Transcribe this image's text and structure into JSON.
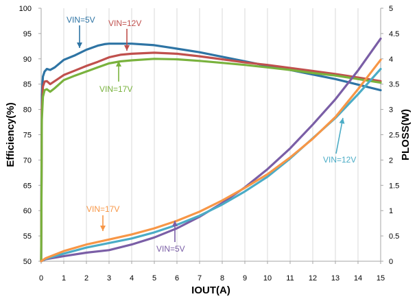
{
  "chart_data": {
    "type": "line",
    "title": "",
    "xlabel": "IOUT(A)",
    "ylabel_left": "Efficiency(%)",
    "ylabel_right": "PLOSS(W)",
    "xlim": [
      0,
      15
    ],
    "ylim_left": [
      50,
      100
    ],
    "ylim_right": [
      0,
      5
    ],
    "x_ticks": [
      "0",
      "1",
      "2",
      "3",
      "4",
      "5",
      "6",
      "7",
      "8",
      "9",
      "10",
      "11",
      "12",
      "13",
      "14",
      "15"
    ],
    "y_left_ticks": [
      "50",
      "55",
      "60",
      "65",
      "70",
      "75",
      "80",
      "85",
      "90",
      "95",
      "100"
    ],
    "y_right_ticks": [
      "0",
      "0.5",
      "1",
      "1.5",
      "2",
      "2.5",
      "3",
      "3.5",
      "4",
      "4.5",
      "5"
    ],
    "grid": "vertical",
    "series": [
      {
        "name": "VIN=5V",
        "axis": "left",
        "color": "#2e74a4",
        "x": [
          0,
          0.03,
          0.08,
          0.15,
          0.25,
          0.4,
          0.6,
          1,
          1.5,
          2,
          2.5,
          2.8,
          3,
          4,
          5,
          6,
          7,
          8,
          9,
          10,
          11,
          12,
          13,
          14,
          15
        ],
        "y": [
          50,
          83,
          86.5,
          87.5,
          88,
          87.8,
          88.3,
          89.8,
          90.7,
          91.8,
          92.6,
          92.9,
          93,
          93,
          92.7,
          92,
          91.3,
          90.4,
          89.5,
          88.6,
          87.8,
          86.9,
          86,
          84.9,
          83.8
        ]
      },
      {
        "name": "VIN=12V",
        "axis": "left",
        "color": "#c0504d",
        "x": [
          0,
          0.03,
          0.08,
          0.15,
          0.25,
          0.4,
          0.6,
          1,
          1.5,
          2,
          2.5,
          3,
          3.5,
          4,
          5,
          6,
          7,
          8,
          9,
          10,
          11,
          12,
          13,
          14,
          15
        ],
        "y": [
          50,
          80,
          84.5,
          85.5,
          85.6,
          85,
          85.6,
          86.8,
          87.7,
          88.6,
          89.4,
          90.3,
          90.8,
          91,
          91.2,
          91,
          90.5,
          89.9,
          89.3,
          88.8,
          88.2,
          87.6,
          87,
          86.3,
          85.6
        ]
      },
      {
        "name": "VIN=17V",
        "axis": "left",
        "color": "#79b23d",
        "x": [
          0,
          0.03,
          0.08,
          0.15,
          0.25,
          0.4,
          0.6,
          1,
          1.5,
          2,
          2.5,
          3,
          3.5,
          4,
          5,
          6,
          7,
          8,
          9,
          10,
          11,
          12,
          13,
          14,
          15
        ],
        "y": [
          50,
          78,
          82.5,
          83.8,
          84,
          83.5,
          84.2,
          85.8,
          86.7,
          87.5,
          88.3,
          89.1,
          89.5,
          89.7,
          90,
          89.9,
          89.6,
          89.2,
          88.8,
          88.3,
          87.8,
          87.2,
          86.7,
          86,
          85.3
        ]
      },
      {
        "name": "VIN=5V",
        "axis": "right",
        "color": "#7a5ea6",
        "x": [
          0,
          0.2,
          1,
          2,
          3,
          4,
          5,
          6,
          7,
          8,
          9,
          10,
          11,
          12,
          13,
          14,
          15
        ],
        "y": [
          0,
          0.04,
          0.1,
          0.17,
          0.22,
          0.33,
          0.47,
          0.65,
          0.88,
          1.15,
          1.46,
          1.82,
          2.23,
          2.7,
          3.2,
          3.77,
          4.4
        ]
      },
      {
        "name": "VIN=12V",
        "axis": "right",
        "color": "#4bacc6",
        "x": [
          0,
          0.2,
          1,
          2,
          3,
          4,
          5,
          6,
          7,
          8,
          9,
          10,
          11,
          12,
          13,
          14,
          15
        ],
        "y": [
          0,
          0.05,
          0.15,
          0.27,
          0.36,
          0.45,
          0.57,
          0.72,
          0.9,
          1.12,
          1.38,
          1.67,
          2.03,
          2.43,
          2.83,
          3.3,
          3.8
        ]
      },
      {
        "name": "VIN=17V",
        "axis": "right",
        "color": "#f79646",
        "x": [
          0,
          0.2,
          1,
          2,
          3,
          4,
          5,
          6,
          7,
          8,
          9,
          10,
          11,
          12,
          13,
          14,
          15
        ],
        "y": [
          0,
          0.06,
          0.2,
          0.33,
          0.43,
          0.53,
          0.65,
          0.8,
          0.98,
          1.2,
          1.45,
          1.72,
          2.05,
          2.42,
          2.85,
          3.4,
          3.98
        ]
      }
    ],
    "annotations": [
      {
        "text": "VIN=5V",
        "series_index": 0,
        "color": "#2e74a4",
        "x": 1.8,
        "y": 91.3
      },
      {
        "text": "VIN=12V",
        "series_index": 1,
        "color": "#c0504d",
        "x": 4,
        "y": 91
      },
      {
        "text": "VIN=17V",
        "series_index": 2,
        "color": "#79b23d",
        "x": 3.6,
        "y": 89.6
      },
      {
        "text": "VIN=17V",
        "series_index": 5,
        "color": "#f79646",
        "x": 2.9,
        "y": 0.43
      },
      {
        "text": "VIN=5V",
        "series_index": 3,
        "color": "#7a5ea6",
        "x": 6.3,
        "y": 0.6
      },
      {
        "text": "VIN=12V",
        "series_index": 4,
        "color": "#4bacc6",
        "x": 13.3,
        "y": 2.82
      }
    ]
  }
}
